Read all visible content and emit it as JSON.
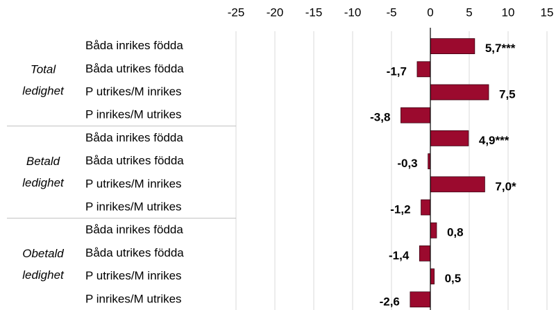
{
  "chart_data": {
    "type": "bar",
    "orientation": "horizontal",
    "groups": [
      {
        "lines": [
          "Total",
          "ledighet"
        ],
        "size": 4
      },
      {
        "lines": [
          "Betald",
          "ledighet"
        ],
        "size": 4
      },
      {
        "lines": [
          "Obetald",
          "ledighet"
        ],
        "size": 4
      }
    ],
    "categories": [
      "Båda inrikes födda",
      "Båda utrikes födda",
      "P utrikes/M inrikes",
      "P inrikes/M utrikes",
      "Båda inrikes födda",
      "Båda utrikes födda",
      "P utrikes/M inrikes",
      "P inrikes/M utrikes",
      "Båda inrikes födda",
      "Båda utrikes födda",
      "P utrikes/M inrikes",
      "P inrikes/M utrikes"
    ],
    "values": [
      5.7,
      -1.7,
      7.5,
      -3.8,
      4.9,
      -0.3,
      7.0,
      -1.2,
      0.8,
      -1.4,
      0.5,
      -2.6
    ],
    "value_labels": [
      "5,7***",
      "-1,7",
      "7,5",
      "-3,8",
      "4,9***",
      "-0,3",
      "7,0*",
      "-1,2",
      "0,8",
      "-1,4",
      "0,5",
      "-2,6"
    ],
    "color": "#9b0a2e",
    "xlim": [
      -25,
      15
    ],
    "xticks": [
      -25,
      -20,
      -15,
      -10,
      -5,
      0,
      5,
      10,
      15
    ],
    "grid": true
  }
}
